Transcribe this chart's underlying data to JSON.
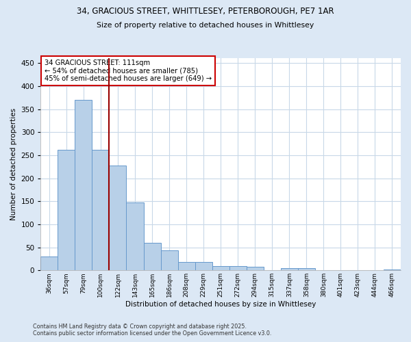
{
  "title_line1": "34, GRACIOUS STREET, WHITTLESEY, PETERBOROUGH, PE7 1AR",
  "title_line2": "Size of property relative to detached houses in Whittlesey",
  "xlabel": "Distribution of detached houses by size in Whittlesey",
  "ylabel": "Number of detached properties",
  "categories": [
    "36sqm",
    "57sqm",
    "79sqm",
    "100sqm",
    "122sqm",
    "143sqm",
    "165sqm",
    "186sqm",
    "208sqm",
    "229sqm",
    "251sqm",
    "272sqm",
    "294sqm",
    "315sqm",
    "337sqm",
    "358sqm",
    "380sqm",
    "401sqm",
    "423sqm",
    "444sqm",
    "466sqm"
  ],
  "values": [
    30,
    262,
    370,
    262,
    227,
    148,
    60,
    44,
    18,
    18,
    10,
    10,
    8,
    0,
    5,
    5,
    0,
    1,
    0,
    0,
    2
  ],
  "bar_color": "#b8d0e8",
  "bar_edge_color": "#6699cc",
  "annotation_text": "34 GRACIOUS STREET: 111sqm\n← 54% of detached houses are smaller (785)\n45% of semi-detached houses are larger (649) →",
  "vline_x_index": 3.5,
  "vline_color": "#990000",
  "annotation_box_color": "#cc0000",
  "ylim": [
    0,
    460
  ],
  "yticks": [
    0,
    50,
    100,
    150,
    200,
    250,
    300,
    350,
    400,
    450
  ],
  "footer_line1": "Contains HM Land Registry data © Crown copyright and database right 2025.",
  "footer_line2": "Contains public sector information licensed under the Open Government Licence v3.0.",
  "fig_bg_color": "#dce8f5",
  "plot_bg_color": "#ffffff",
  "grid_color": "#c8d8e8"
}
